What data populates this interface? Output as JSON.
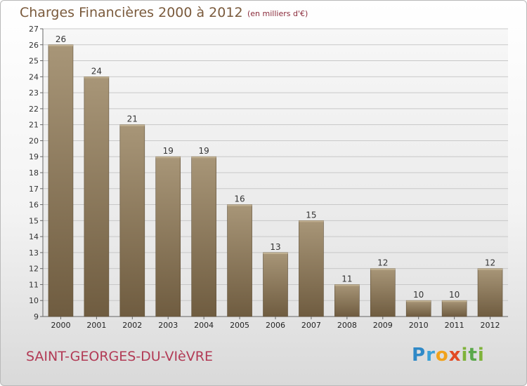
{
  "chart_data": {
    "type": "bar",
    "title": "Charges Financières 2000 à 2012",
    "subtitle": "(en milliers d'€)",
    "categories": [
      "2000",
      "2001",
      "2002",
      "2003",
      "2004",
      "2005",
      "2006",
      "2007",
      "2008",
      "2009",
      "2010",
      "2011",
      "2012"
    ],
    "values": [
      26,
      24,
      21,
      19,
      19,
      16,
      13,
      15,
      11,
      12,
      10,
      10,
      12
    ],
    "ylim": [
      9,
      27
    ],
    "yticks": [
      9,
      10,
      11,
      12,
      13,
      14,
      15,
      16,
      17,
      18,
      19,
      20,
      21,
      22,
      23,
      24,
      25,
      26,
      27
    ],
    "xlabel": "",
    "ylabel": "",
    "grid": true,
    "bar_color": "#8a7558"
  },
  "footer": {
    "commune": "SAINT-GEORGES-DU-VIèVRE",
    "logo_parts": [
      "P",
      "r",
      "o",
      "x",
      "i",
      "t",
      "i"
    ]
  }
}
